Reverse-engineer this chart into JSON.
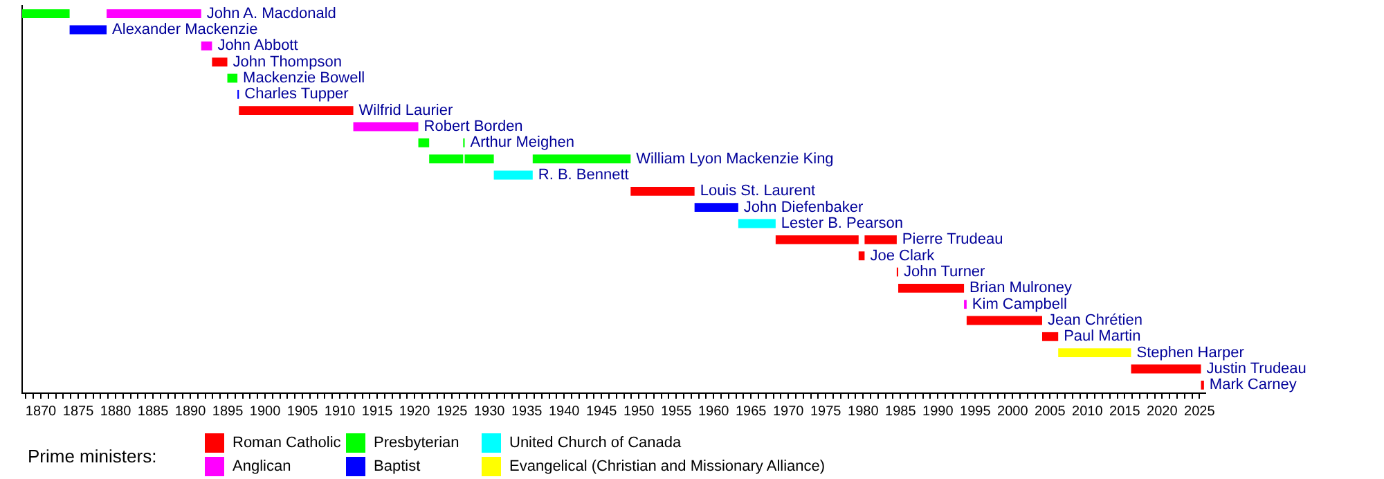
{
  "chart_data": {
    "type": "bar",
    "orientation": "horizontal",
    "legend_title": "Prime ministers:",
    "legend": "bottom",
    "grid": false,
    "categories": [
      "John A. Macdonald",
      "Alexander Mackenzie",
      "John Abbott",
      "John Thompson",
      "Mackenzie Bowell",
      "Charles Tupper",
      "Wilfrid Laurier",
      "Robert Borden",
      "Arthur Meighen",
      "William Lyon Mackenzie King",
      "R. B. Bennett",
      "Louis St. Laurent",
      "John Diefenbaker",
      "Lester B. Pearson",
      "Pierre Trudeau",
      "Joe Clark",
      "John Turner",
      "Brian Mulroney",
      "Kim Campbell",
      "Jean Chrétien",
      "Paul Martin",
      "Stephen Harper",
      "Justin Trudeau",
      "Mark Carney"
    ],
    "xlim": [
      1867.5,
      2025.8
    ],
    "xticks": [
      {
        "value": 1868,
        "label": null
      },
      {
        "value": 1869,
        "label": null
      },
      1870,
      {
        "value": 1871,
        "label": null
      },
      {
        "value": 1872,
        "label": null
      },
      {
        "value": 1873,
        "label": null
      },
      {
        "value": 1874,
        "label": null
      },
      1875,
      {
        "value": 1876,
        "label": null
      },
      {
        "value": 1877,
        "label": null
      },
      {
        "value": 1878,
        "label": null
      },
      {
        "value": 1879,
        "label": null
      },
      1880,
      {
        "value": 1881,
        "label": null
      },
      {
        "value": 1882,
        "label": null
      },
      {
        "value": 1883,
        "label": null
      },
      {
        "value": 1884,
        "label": null
      },
      1885,
      {
        "value": 1886,
        "label": null
      },
      {
        "value": 1887,
        "label": null
      },
      {
        "value": 1888,
        "label": null
      },
      {
        "value": 1889,
        "label": null
      },
      1890,
      {
        "value": 1891,
        "label": null
      },
      {
        "value": 1892,
        "label": null
      },
      {
        "value": 1893,
        "label": null
      },
      {
        "value": 1894,
        "label": null
      },
      1895,
      {
        "value": 1896,
        "label": null
      },
      {
        "value": 1897,
        "label": null
      },
      {
        "value": 1898,
        "label": null
      },
      {
        "value": 1899,
        "label": null
      },
      1900,
      {
        "value": 1901,
        "label": null
      },
      {
        "value": 1902,
        "label": null
      },
      {
        "value": 1903,
        "label": null
      },
      {
        "value": 1904,
        "label": null
      },
      1905,
      {
        "value": 1906,
        "label": null
      },
      {
        "value": 1907,
        "label": null
      },
      {
        "value": 1908,
        "label": null
      },
      {
        "value": 1909,
        "label": null
      },
      1910,
      {
        "value": 1911,
        "label": null
      },
      {
        "value": 1912,
        "label": null
      },
      {
        "value": 1913,
        "label": null
      },
      {
        "value": 1914,
        "label": null
      },
      1915,
      {
        "value": 1916,
        "label": null
      },
      {
        "value": 1917,
        "label": null
      },
      {
        "value": 1918,
        "label": null
      },
      {
        "value": 1919,
        "label": null
      },
      1920,
      {
        "value": 1921,
        "label": null
      },
      {
        "value": 1922,
        "label": null
      },
      {
        "value": 1923,
        "label": null
      },
      {
        "value": 1924,
        "label": null
      },
      1925,
      {
        "value": 1926,
        "label": null
      },
      {
        "value": 1927,
        "label": null
      },
      {
        "value": 1928,
        "label": null
      },
      {
        "value": 1929,
        "label": null
      },
      1930,
      {
        "value": 1931,
        "label": null
      },
      {
        "value": 1932,
        "label": null
      },
      {
        "value": 1933,
        "label": null
      },
      {
        "value": 1934,
        "label": null
      },
      1935,
      {
        "value": 1936,
        "label": null
      },
      {
        "value": 1937,
        "label": null
      },
      {
        "value": 1938,
        "label": null
      },
      {
        "value": 1939,
        "label": null
      },
      1940,
      {
        "value": 1941,
        "label": null
      },
      {
        "value": 1942,
        "label": null
      },
      {
        "value": 1943,
        "label": null
      },
      {
        "value": 1944,
        "label": null
      },
      1945,
      {
        "value": 1946,
        "label": null
      },
      {
        "value": 1947,
        "label": null
      },
      {
        "value": 1948,
        "label": null
      },
      {
        "value": 1949,
        "label": null
      },
      1950,
      {
        "value": 1951,
        "label": null
      },
      {
        "value": 1952,
        "label": null
      },
      {
        "value": 1953,
        "label": null
      },
      {
        "value": 1954,
        "label": null
      },
      1955,
      {
        "value": 1956,
        "label": null
      },
      {
        "value": 1957,
        "label": null
      },
      {
        "value": 1958,
        "label": null
      },
      {
        "value": 1959,
        "label": null
      },
      1960,
      {
        "value": 1961,
        "label": null
      },
      {
        "value": 1962,
        "label": null
      },
      {
        "value": 1963,
        "label": null
      },
      {
        "value": 1964,
        "label": null
      },
      1965,
      {
        "value": 1966,
        "label": null
      },
      {
        "value": 1967,
        "label": null
      },
      {
        "value": 1968,
        "label": null
      },
      {
        "value": 1969,
        "label": null
      },
      1970,
      {
        "value": 1971,
        "label": null
      },
      {
        "value": 1972,
        "label": null
      },
      {
        "value": 1973,
        "label": null
      },
      {
        "value": 1974,
        "label": null
      },
      1975,
      {
        "value": 1976,
        "label": null
      },
      {
        "value": 1977,
        "label": null
      },
      {
        "value": 1978,
        "label": null
      },
      {
        "value": 1979,
        "label": null
      },
      1980,
      {
        "value": 1981,
        "label": null
      },
      {
        "value": 1982,
        "label": null
      },
      {
        "value": 1983,
        "label": null
      },
      {
        "value": 1984,
        "label": null
      },
      1985,
      {
        "value": 1986,
        "label": null
      },
      {
        "value": 1987,
        "label": null
      },
      {
        "value": 1988,
        "label": null
      },
      {
        "value": 1989,
        "label": null
      },
      1990,
      {
        "value": 1991,
        "label": null
      },
      {
        "value": 1992,
        "label": null
      },
      {
        "value": 1993,
        "label": null
      },
      {
        "value": 1994,
        "label": null
      },
      1995,
      {
        "value": 1996,
        "label": null
      },
      {
        "value": 1997,
        "label": null
      },
      {
        "value": 1998,
        "label": null
      },
      {
        "value": 1999,
        "label": null
      },
      2000,
      {
        "value": 2001,
        "label": null
      },
      {
        "value": 2002,
        "label": null
      },
      {
        "value": 2003,
        "label": null
      },
      {
        "value": 2004,
        "label": null
      },
      2005,
      {
        "value": 2006,
        "label": null
      },
      {
        "value": 2007,
        "label": null
      },
      {
        "value": 2008,
        "label": null
      },
      {
        "value": 2009,
        "label": null
      },
      2010,
      {
        "value": 2011,
        "label": null
      },
      {
        "value": 2012,
        "label": null
      },
      {
        "value": 2013,
        "label": null
      },
      {
        "value": 2014,
        "label": null
      },
      2015,
      {
        "value": 2016,
        "label": null
      },
      {
        "value": 2017,
        "label": null
      },
      {
        "value": 2018,
        "label": null
      },
      {
        "value": 2019,
        "label": null
      },
      2020,
      {
        "value": 2021,
        "label": null
      },
      {
        "value": 2022,
        "label": null
      },
      {
        "value": 2023,
        "label": null
      },
      {
        "value": 2024,
        "label": null
      },
      2025
    ],
    "series": [
      {
        "name": "Roman Catholic",
        "color": "#ff0000",
        "values": [
          null,
          null,
          null,
          2.05,
          null,
          null,
          15.3,
          null,
          null,
          null,
          null,
          8.55,
          null,
          null,
          11.1,
          0.8,
          0.2,
          8.8,
          null,
          10.1,
          2.15,
          null,
          9.35,
          0.4
        ],
        "base": [
          null,
          null,
          null,
          1892.9,
          null,
          null,
          1896.5,
          null,
          null,
          null,
          null,
          1948.9,
          null,
          null,
          1968.3,
          1979.4,
          1984.5,
          1984.7,
          null,
          1993.85,
          2003.95,
          null,
          2015.85,
          2025.2
        ]
      },
      {
        "name": "Anglican",
        "color": "#ff00ff",
        "values": [
          12.65,
          null,
          1.45,
          null,
          null,
          null,
          null,
          8.7,
          null,
          null,
          null,
          null,
          null,
          null,
          null,
          null,
          null,
          null,
          0.35,
          null,
          null,
          null,
          null,
          null
        ],
        "base": [
          1878.8,
          null,
          1891.45,
          null,
          null,
          null,
          null,
          1911.8,
          null,
          null,
          null,
          null,
          null,
          null,
          null,
          null,
          null,
          null,
          1993.5,
          null,
          null,
          null,
          null,
          null
        ]
      },
      {
        "name": "Presbyterian",
        "color": "#00ff00",
        "values": [
          6.35,
          null,
          null,
          null,
          1.35,
          null,
          null,
          null,
          1.45,
          4.55,
          null,
          null,
          null,
          null,
          null,
          null,
          null,
          null,
          null,
          null,
          null,
          null,
          null,
          null
        ],
        "base": [
          1867.5,
          null,
          null,
          null,
          1894.95,
          null,
          null,
          null,
          1920.5,
          1921.95,
          null,
          null,
          null,
          null,
          null,
          null,
          null,
          null,
          null,
          null,
          null,
          null,
          null,
          null
        ]
      },
      {
        "name": "Baptist",
        "color": "#0000ff",
        "values": [
          null,
          4.95,
          null,
          null,
          null,
          0.2,
          null,
          null,
          null,
          null,
          null,
          null,
          5.85,
          null,
          null,
          null,
          null,
          null,
          null,
          null,
          null,
          null,
          null,
          null
        ],
        "base": [
          null,
          1873.85,
          null,
          null,
          null,
          1896.3,
          null,
          null,
          null,
          null,
          null,
          null,
          1957.45,
          null,
          null,
          null,
          null,
          null,
          null,
          null,
          null,
          null,
          null,
          null
        ]
      },
      {
        "name": "United Church of Canada",
        "color": "#00ffff",
        "values": [
          null,
          null,
          null,
          null,
          null,
          null,
          null,
          null,
          null,
          null,
          5.2,
          null,
          null,
          5,
          null,
          null,
          null,
          null,
          null,
          null,
          null,
          null,
          null,
          null
        ],
        "base": [
          null,
          null,
          null,
          null,
          null,
          null,
          null,
          null,
          null,
          null,
          1930.6,
          null,
          null,
          1963.3,
          null,
          null,
          null,
          null,
          null,
          null,
          null,
          null,
          null,
          null
        ]
      },
      {
        "name": "Evangelical (Christian and Missionary Alliance)",
        "color": "#ffff00",
        "values": [
          null,
          null,
          null,
          null,
          null,
          null,
          null,
          null,
          null,
          null,
          null,
          null,
          null,
          null,
          null,
          null,
          null,
          null,
          null,
          null,
          null,
          9.75,
          null,
          null
        ],
        "base": [
          null,
          null,
          null,
          null,
          null,
          null,
          null,
          null,
          null,
          null,
          null,
          null,
          null,
          null,
          null,
          null,
          null,
          null,
          null,
          null,
          null,
          2006.1,
          null,
          null
        ]
      },
      {
        "color": "#ff0000",
        "values": [
          null,
          null,
          null,
          null,
          null,
          null,
          null,
          null,
          null,
          null,
          null,
          null,
          null,
          null,
          4.3,
          null,
          null,
          null,
          null,
          null,
          null,
          null,
          null,
          null
        ],
        "base": [
          null,
          null,
          null,
          null,
          null,
          null,
          null,
          null,
          null,
          null,
          null,
          null,
          null,
          null,
          1980.2,
          null,
          null,
          null,
          null,
          null,
          null,
          null,
          null,
          null
        ]
      },
      {
        "color": "#00ff00",
        "values": [
          null,
          null,
          null,
          null,
          null,
          null,
          null,
          null,
          0.2,
          3.9,
          null,
          null,
          null,
          null,
          null,
          null,
          null,
          null,
          null,
          null,
          null,
          null,
          null,
          null
        ],
        "base": [
          null,
          null,
          null,
          null,
          null,
          null,
          null,
          null,
          1926.5,
          1926.7,
          null,
          null,
          null,
          null,
          null,
          null,
          null,
          null,
          null,
          null,
          null,
          null,
          null,
          null
        ]
      },
      {
        "color": "#00ff00",
        "values": [
          null,
          null,
          null,
          null,
          null,
          null,
          null,
          null,
          null,
          13.1,
          null,
          null,
          null,
          null,
          null,
          null,
          null,
          null,
          null,
          null,
          null,
          null,
          null,
          null
        ],
        "base": [
          null,
          null,
          null,
          null,
          null,
          null,
          null,
          null,
          null,
          1935.8,
          null,
          null,
          null,
          null,
          null,
          null,
          null,
          null,
          null,
          null,
          null,
          null,
          null,
          null
        ]
      }
    ]
  }
}
